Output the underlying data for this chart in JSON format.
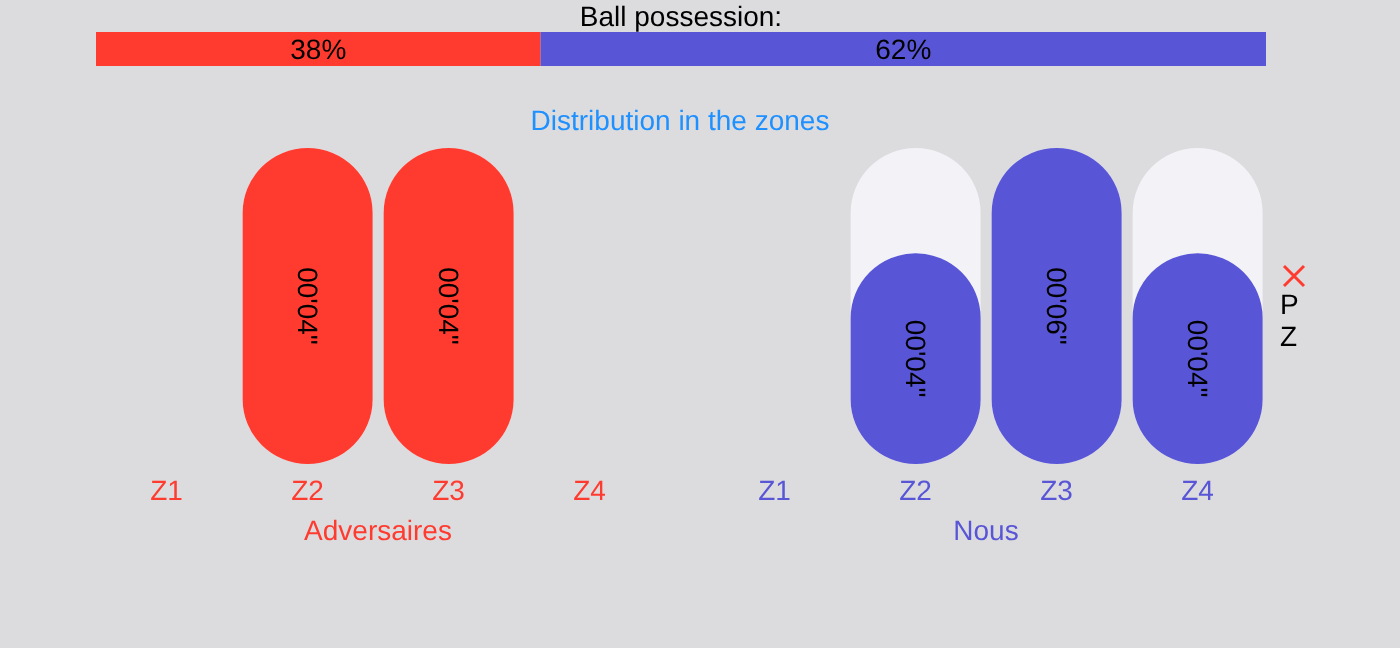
{
  "chart_data": [
    {
      "type": "bar",
      "orientation": "horizontal",
      "stacked": true,
      "title": "Ball possession:",
      "categories": [
        null
      ],
      "series": [
        {
          "color": "#ff3b30",
          "values": [
            38
          ],
          "value_labels": [
            "38%"
          ]
        },
        {
          "color": "#5856d6",
          "values": [
            62
          ],
          "value_labels": [
            "62%"
          ]
        }
      ]
    },
    {
      "type": "bar",
      "title": "Distribution in the zones",
      "xlabel": "Adversaires",
      "categories": [
        "Z1",
        "Z2",
        "Z3",
        "Z4"
      ],
      "series": [
        {
          "color": "#ff3b30",
          "values": [
            null,
            4,
            4,
            null
          ],
          "value_labels": [
            null,
            "00'04\"",
            "00'04\"",
            null
          ]
        }
      ]
    },
    {
      "type": "bar",
      "xlabel": "Nous",
      "categories": [
        "Z1",
        "Z2",
        "Z3",
        "Z4"
      ],
      "annotations": [
        "P",
        "Z"
      ],
      "series": [
        {
          "color": "#5856d6",
          "values": [
            null,
            4,
            6,
            4
          ],
          "value_labels": [
            null,
            "00'04\"",
            "00'06\"",
            "00'04\""
          ]
        }
      ]
    }
  ]
}
